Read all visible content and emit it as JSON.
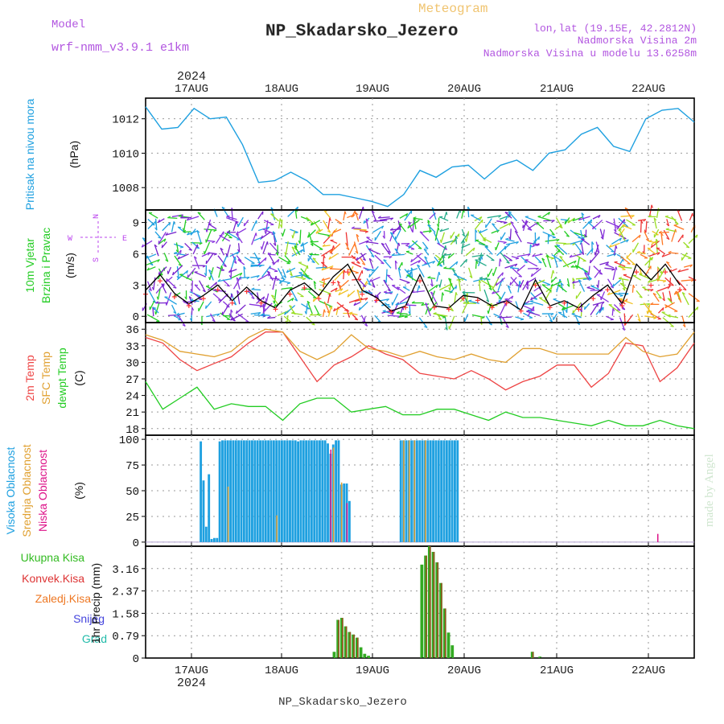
{
  "header": {
    "model_label": "Model",
    "model_name": "wrf-nmm_v3.9.1  e1km",
    "meteogram_label": "Meteogram",
    "station_title": "NP_Skadarsko_Jezero",
    "coords": "lon,lat (19.15E, 42.2812N)",
    "altitude": "Nadmorska Visina 2m",
    "model_altitude": "Nadmorska Visina u modelu 13.6258m",
    "year": "2024",
    "footer_station": "NP_Skadarsko_Jezero",
    "watermark": "made by Angel"
  },
  "colors": {
    "pressure": "#1ea0e0",
    "temp2m": "#ee4444",
    "sfc": "#e0a030",
    "dewpt": "#22cc22",
    "high_cloud": "#1ea0e0",
    "mid_cloud": "#e0a030",
    "low_cloud": "#dd1188",
    "precip_total": "#33aa22",
    "precip_conv": "#dd3333",
    "wind_speed": "#000000",
    "wind_gust": "#ff3333",
    "compass": "#bb44ee"
  },
  "chart_data": [
    {
      "type": "line",
      "panel": "pressure",
      "ylabel_main": "Pritisak na nivou mora",
      "ylabel_units": "(hPa)",
      "x_ticks": [
        "17AUG",
        "18AUG",
        "19AUG",
        "20AUG",
        "21AUG",
        "22AUG"
      ],
      "x_hours": [
        0,
        3,
        6,
        9,
        12,
        15,
        18,
        21,
        24,
        27,
        30,
        33,
        36,
        39,
        42,
        45,
        48,
        51,
        54,
        57,
        60,
        63,
        66,
        69,
        72,
        75,
        78,
        81,
        84,
        87,
        90,
        93,
        96,
        99,
        102,
        105,
        108,
        111,
        114,
        117,
        120,
        123,
        126,
        129,
        132,
        135,
        138,
        141,
        144,
        147
      ],
      "series": [
        {
          "values": [
            1012.7,
            1011.4,
            1011.5,
            1012.6,
            1012.0,
            1012.1,
            1010.5,
            1008.3,
            1008.4,
            1008.9,
            1008.4,
            1007.6,
            1007.6,
            1007.4,
            1007.2,
            1006.9,
            1007.6,
            1009.0,
            1008.6,
            1009.2,
            1009.3,
            1008.5,
            1009.3,
            1009.6,
            1009.0,
            1010.0,
            1010.2,
            1011.1,
            1011.5,
            1010.4,
            1010.1,
            1012.0,
            1012.5,
            1012.6,
            1011.8
          ],
          "x": [
            0,
            3,
            6,
            9,
            12,
            15,
            18,
            21,
            24,
            27,
            30,
            33,
            36,
            39,
            42,
            45,
            48,
            51,
            54,
            57,
            60,
            63,
            66,
            69,
            72,
            75,
            78,
            81,
            84,
            87,
            90,
            93,
            96,
            99,
            102
          ]
        }
      ],
      "y_ticks": [
        1008,
        1010,
        1012
      ],
      "ylim": [
        1006.7,
        1013.2
      ]
    },
    {
      "type": "line",
      "panel": "wind",
      "ylabel_main": "10m Vjetar",
      "ylabel_sub": "Brzina i Pravac",
      "ylabel_units": "(m/s)",
      "compass": {
        "n": "N",
        "s": "S",
        "w": "W",
        "e": "E"
      },
      "series": [
        {
          "name": "speed",
          "x": [
            0,
            5,
            10,
            15,
            20,
            25,
            30,
            35,
            40,
            45,
            50,
            55,
            60,
            65,
            70,
            75,
            80,
            85,
            90,
            95,
            100,
            105,
            110,
            115,
            120,
            125,
            130,
            135,
            140,
            145,
            150,
            155,
            160,
            165,
            170,
            175,
            180,
            185
          ],
          "values": [
            2.5,
            4.0,
            2.2,
            1.2,
            2.0,
            3.0,
            1.5,
            2.8,
            1.5,
            0.8,
            2.5,
            3.2,
            2.0,
            3.8,
            5.0,
            2.5,
            1.8,
            0.5,
            1.0,
            4.0,
            1.0,
            0.8,
            2.0,
            1.8,
            1.0,
            1.5,
            0.6,
            3.5,
            1.0,
            1.5,
            0.8,
            2.0,
            3.0,
            1.2,
            5.0,
            3.5,
            5.0,
            3.0
          ]
        }
      ],
      "y_ticks": [
        0,
        3,
        6,
        9
      ],
      "ylim": [
        -0.6,
        10.2
      ]
    },
    {
      "type": "line",
      "panel": "temperature",
      "ylabel_lines": [
        "2m Temp",
        "SFC Temp",
        "dewpt Temp"
      ],
      "ylabel_units": "(C)",
      "series": [
        {
          "name": "2m Temp",
          "values": [
            34.5,
            33.5,
            30.5,
            28.5,
            29.8,
            31,
            33.5,
            35.5,
            35.5,
            31,
            26.5,
            29.5,
            31,
            33,
            31.5,
            30.5,
            28,
            27.5,
            27,
            28.5,
            27,
            25,
            26.5,
            27.5,
            29.5,
            29.5,
            25.5,
            28,
            33.5,
            33,
            26.5,
            29,
            33.5
          ]
        },
        {
          "name": "SFC Temp",
          "values": [
            35,
            34,
            32,
            31.5,
            31,
            32,
            34.5,
            36,
            35.5,
            32,
            30.5,
            32,
            35,
            32.5,
            32,
            31,
            32,
            31,
            30.5,
            31.5,
            30.5,
            30,
            32.5,
            32.5,
            31.5,
            31.5,
            31.5,
            31.5,
            34.5,
            32,
            31,
            31.5,
            35.5
          ]
        },
        {
          "name": "dewpt Temp",
          "values": [
            26.5,
            21.5,
            23.5,
            25.5,
            21.5,
            22.5,
            22,
            22,
            19.5,
            22.5,
            23.5,
            23.5,
            21,
            21.5,
            22,
            20.5,
            20.5,
            21.5,
            21.5,
            20.5,
            19.5,
            21,
            20,
            20,
            19.5,
            19,
            18.5,
            19.5,
            18.5,
            18.5,
            19.5,
            18.5,
            18
          ]
        }
      ],
      "y_ticks": [
        18,
        21,
        24,
        27,
        30,
        33,
        36
      ],
      "ylim": [
        16.8,
        37.2
      ]
    },
    {
      "type": "bar",
      "panel": "clouds",
      "ylabel_lines": [
        "Visoka Oblacnost",
        "Srednja Oblacnost",
        "Niska Oblacnost"
      ],
      "ylabel_units": "(%)",
      "series": [
        {
          "name": "Visoka Oblacnost",
          "values": [
            0,
            0,
            0,
            0,
            0,
            0,
            0,
            0,
            0,
            0,
            0,
            0,
            0,
            0,
            0,
            0,
            0,
            0,
            0,
            0,
            98,
            60,
            15,
            66,
            3,
            4,
            4,
            98,
            99,
            99,
            99,
            99,
            99,
            99,
            99,
            99,
            99,
            99,
            99,
            99,
            99,
            99,
            99,
            99,
            99,
            99,
            99,
            99,
            99,
            99,
            99,
            99,
            99,
            99,
            99,
            99,
            98,
            99,
            99,
            99,
            99,
            99,
            99,
            99,
            99,
            99,
            99,
            96,
            86,
            95,
            99,
            99,
            56,
            57,
            57,
            40,
            0,
            0,
            0,
            0,
            0,
            0,
            0,
            0,
            0,
            0,
            0,
            0,
            0,
            0,
            0,
            0,
            0,
            0,
            99,
            99,
            99,
            99,
            99,
            99,
            99,
            99,
            99,
            99,
            99,
            99,
            99,
            99,
            99,
            99,
            99,
            99,
            99,
            99,
            99,
            99,
            0,
            0,
            0,
            0,
            0,
            0,
            0,
            0,
            0,
            0,
            0,
            0,
            0,
            0,
            0,
            0,
            0,
            0,
            0,
            0,
            0,
            0,
            0,
            0,
            0,
            0,
            0,
            0,
            0,
            0,
            0,
            0,
            0,
            0,
            0,
            0,
            0,
            0,
            0,
            0,
            0,
            0,
            0,
            0,
            0,
            0,
            0,
            0,
            0,
            0,
            0,
            0,
            0,
            0,
            0,
            0,
            0,
            0,
            0,
            0,
            0,
            0,
            0,
            0,
            0,
            0,
            0,
            0,
            0,
            0,
            0,
            0,
            0,
            0,
            0,
            0,
            0,
            0,
            0,
            0,
            0,
            0,
            0,
            0,
            0,
            0,
            0
          ]
        },
        {
          "name": "Srednja Oblacnost",
          "values": [
            0,
            0,
            0,
            0,
            0,
            0,
            0,
            0,
            0,
            0,
            0,
            0,
            0,
            0,
            0,
            0,
            0,
            0,
            0,
            0,
            0,
            0,
            0,
            0,
            0,
            0,
            0,
            0,
            0,
            0,
            54,
            0,
            0,
            0,
            0,
            0,
            0,
            0,
            0,
            0,
            0,
            0,
            0,
            0,
            0,
            0,
            0,
            0,
            26,
            0,
            0,
            0,
            0,
            0,
            0,
            0,
            0,
            0,
            0,
            0,
            0,
            0,
            0,
            0,
            0,
            0,
            0,
            0,
            86,
            92,
            0,
            0,
            58,
            0,
            0,
            0,
            0,
            0,
            0,
            0,
            0,
            0,
            0,
            0,
            0,
            0,
            0,
            0,
            0,
            0,
            0,
            0,
            0,
            0,
            0,
            99,
            0,
            99,
            0,
            99,
            0,
            0,
            0,
            99,
            0,
            0,
            0,
            0,
            0,
            0,
            0,
            0,
            0,
            0,
            0,
            0,
            0,
            0,
            0,
            0,
            0,
            0,
            0,
            0,
            0,
            0,
            0,
            0,
            0,
            0,
            0,
            0,
            0,
            0,
            0,
            0,
            0,
            0,
            0,
            0,
            0,
            0,
            0,
            0,
            0,
            0,
            0,
            0,
            0,
            0,
            0,
            0,
            0,
            0,
            0,
            0,
            0,
            0,
            0,
            0,
            0,
            0,
            0,
            0,
            0,
            0,
            0,
            0,
            0,
            0,
            0,
            0,
            0,
            0,
            0,
            0,
            0,
            0,
            0,
            0,
            0,
            0,
            0,
            0,
            0,
            0,
            0,
            0,
            0,
            0,
            0,
            0,
            0,
            0,
            0
          ]
        },
        {
          "name": "Niska Oblacnost",
          "values": [
            0,
            0,
            0,
            0,
            0,
            0,
            0,
            0,
            0,
            0,
            0,
            0,
            0,
            0,
            0,
            0,
            0,
            0,
            0,
            0,
            0,
            0,
            0,
            0,
            0,
            0,
            0,
            0,
            0,
            0,
            0,
            0,
            0,
            0,
            0,
            0,
            0,
            0,
            0,
            0,
            0,
            0,
            0,
            0,
            0,
            0,
            0,
            0,
            0,
            0,
            0,
            0,
            0,
            0,
            0,
            0,
            0,
            0,
            0,
            0,
            0,
            0,
            0,
            0,
            0,
            0,
            0,
            0,
            90,
            0,
            0,
            0,
            0,
            0,
            38,
            0,
            0,
            0,
            0,
            0,
            0,
            0,
            0,
            0,
            0,
            0,
            0,
            0,
            0,
            0,
            0,
            0,
            0,
            0,
            0,
            0,
            0,
            0,
            0,
            0,
            0,
            0,
            0,
            0,
            0,
            0,
            0,
            0,
            0,
            0,
            0,
            0,
            0,
            0,
            0,
            0,
            0,
            0,
            0,
            0,
            0,
            0,
            0,
            0,
            0,
            0,
            0,
            0,
            0,
            0,
            0,
            0,
            0,
            0,
            0,
            0,
            0,
            0,
            0,
            0,
            0,
            0,
            0,
            0,
            0,
            0,
            0,
            0,
            0,
            0,
            0,
            0,
            0,
            0,
            0,
            0,
            0,
            0,
            0,
            0,
            0,
            0,
            0,
            0,
            0,
            0,
            0,
            0,
            0,
            0,
            0,
            0,
            0,
            0,
            0,
            0,
            0,
            0,
            0,
            0,
            0,
            0,
            0,
            0,
            0,
            0,
            0,
            0,
            0,
            8
          ]
        }
      ],
      "y_ticks": [
        0,
        25,
        50,
        75,
        100
      ],
      "ylim": [
        -4,
        104
      ]
    },
    {
      "type": "bar",
      "panel": "precipitation",
      "legend": [
        "Ukupna Kisa",
        "Konvek.Kisa",
        "Zaledj.Kisa",
        "Snijeg",
        "Grad"
      ],
      "ylabel_units": "1hr Precip (mm)",
      "series": [
        {
          "name": "Ukupna Kisa",
          "x": [
            49,
            50,
            51,
            52,
            53,
            54,
            55,
            56,
            57,
            58,
            59,
            60,
            61,
            62,
            72,
            73,
            74,
            75,
            76,
            77,
            78,
            79,
            80,
            81,
            82,
            101,
            103
          ],
          "values": [
            0.22,
            1.35,
            1.42,
            1.12,
            0.92,
            0.83,
            0.72,
            0.38,
            0.15,
            0.08,
            0.0,
            0.0,
            0.0,
            0.0,
            3.3,
            3.62,
            3.95,
            3.75,
            3.38,
            2.65,
            1.75,
            0.9,
            0.45,
            0.0,
            0.0,
            0.22,
            0.05
          ]
        },
        {
          "name": "Konvek.Kisa",
          "x": [
            50,
            51,
            52,
            53,
            54,
            55,
            73,
            74,
            75,
            76,
            77,
            78,
            101
          ],
          "values": [
            0.12,
            0.1,
            0.08,
            0.06,
            0.05,
            0.04,
            0.25,
            0.3,
            0.28,
            0.22,
            0.18,
            0.12,
            0.02
          ]
        }
      ],
      "y_ticks": [
        0,
        0.79,
        1.58,
        2.37,
        3.16
      ],
      "ylim": [
        0,
        3.95
      ]
    }
  ]
}
